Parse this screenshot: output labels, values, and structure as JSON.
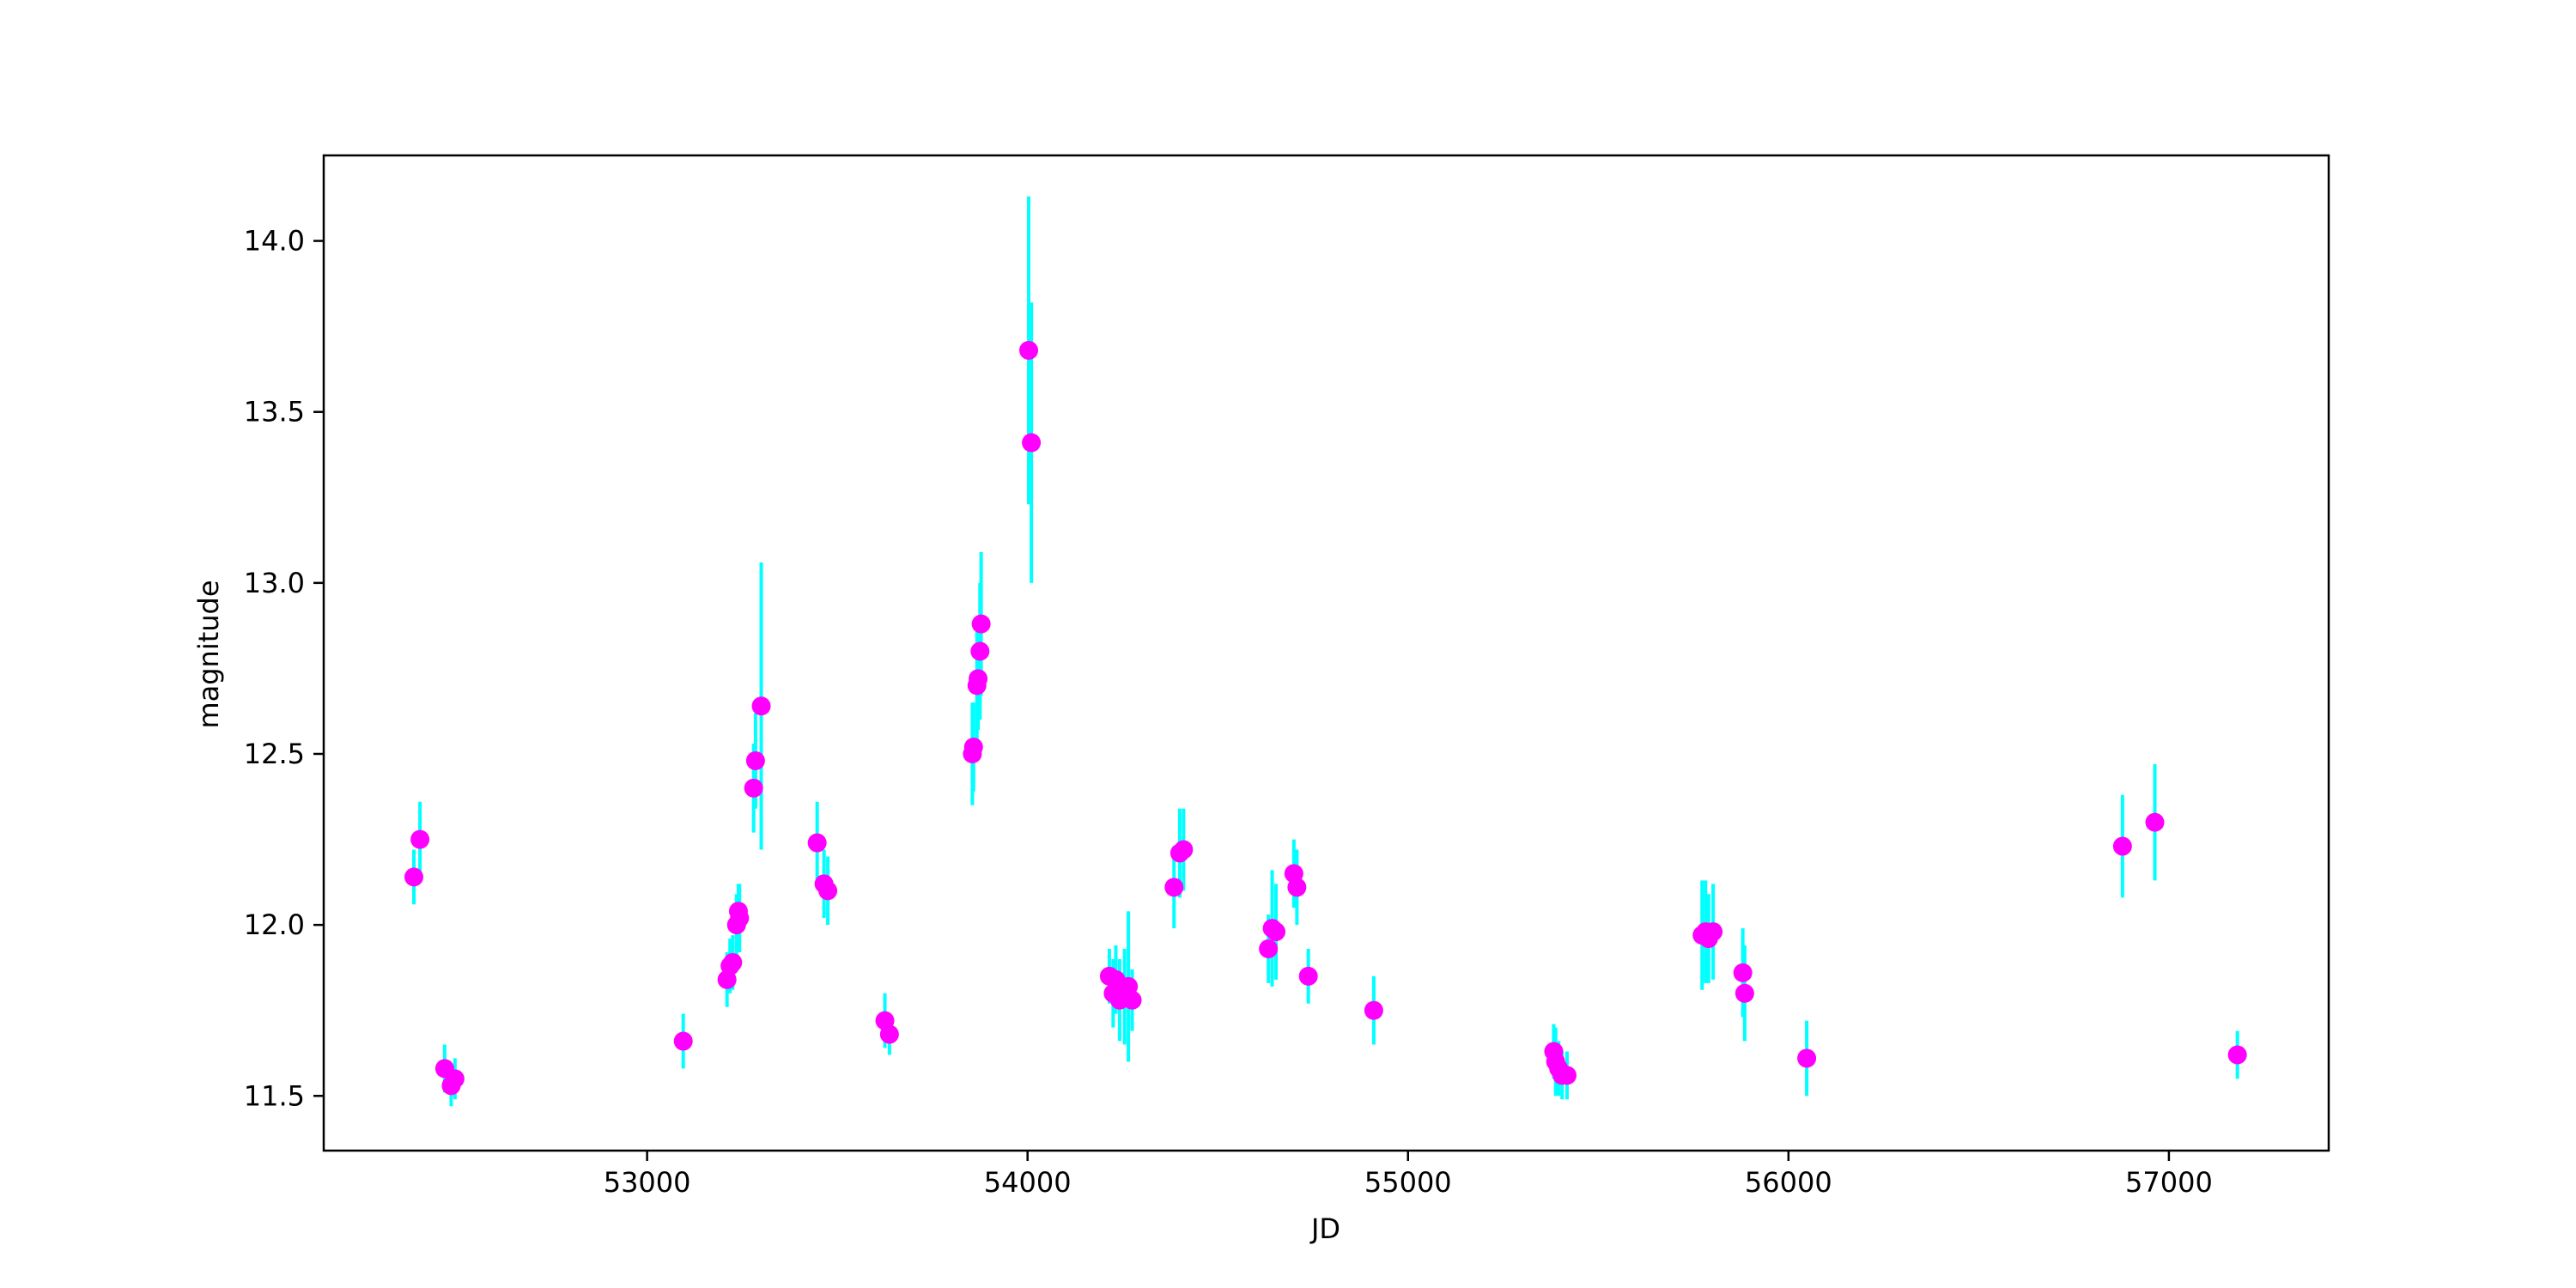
{
  "chart_data": {
    "type": "scatter",
    "title": "",
    "xlabel": "JD",
    "ylabel": "magnitude",
    "xlim": [
      52150,
      57420
    ],
    "ylim": [
      11.34,
      14.25
    ],
    "xticks": [
      53000,
      54000,
      55000,
      56000,
      57000
    ],
    "xtick_labels": [
      "53000",
      "54000",
      "55000",
      "56000",
      "57000"
    ],
    "yticks": [
      11.5,
      12.0,
      12.5,
      13.0,
      13.5,
      14.0
    ],
    "ytick_labels": [
      "11.5",
      "12.0",
      "12.5",
      "13.0",
      "13.5",
      "14.0"
    ],
    "grid": false,
    "marker_color": "#ff00ff",
    "errorbar_color": "#00ffff",
    "series": [
      {
        "x": [
          52387,
          52403,
          52468,
          52485,
          52495,
          53095,
          53210,
          53218,
          53225,
          53235,
          53240,
          53243,
          53280,
          53285,
          53300,
          53447,
          53465,
          53475,
          53625,
          53637,
          53855,
          53858,
          53867,
          53870,
          53875,
          53878,
          54003,
          54010,
          54215,
          54225,
          54232,
          54242,
          54255,
          54265,
          54275,
          54385,
          54400,
          54410,
          54633,
          54643,
          54653,
          54700,
          54708,
          54738,
          54910,
          55383,
          55388,
          55396,
          55405,
          55418,
          55773,
          55782,
          55790,
          55802,
          55880,
          55885,
          56048,
          56878,
          56963,
          57180
        ],
        "y": [
          12.14,
          12.25,
          11.58,
          11.53,
          11.55,
          11.66,
          11.84,
          11.88,
          11.89,
          12.0,
          12.04,
          12.02,
          12.4,
          12.48,
          12.64,
          12.24,
          12.12,
          12.1,
          11.72,
          11.68,
          12.5,
          12.52,
          12.7,
          12.72,
          12.8,
          12.88,
          13.68,
          13.41,
          11.85,
          11.8,
          11.84,
          11.78,
          11.79,
          11.82,
          11.78,
          12.11,
          12.21,
          12.22,
          11.93,
          11.99,
          11.98,
          12.15,
          12.11,
          11.85,
          11.75,
          11.63,
          11.6,
          11.58,
          11.56,
          11.56,
          11.97,
          11.98,
          11.96,
          11.98,
          11.86,
          11.8,
          11.61,
          12.23,
          12.3,
          11.62
        ],
        "yerr": [
          0.08,
          0.11,
          0.07,
          0.06,
          0.06,
          0.08,
          0.08,
          0.08,
          0.08,
          0.09,
          0.08,
          0.1,
          0.13,
          0.14,
          0.42,
          0.12,
          0.1,
          0.1,
          0.08,
          0.06,
          0.15,
          0.13,
          0.16,
          0.15,
          0.2,
          0.21,
          0.45,
          0.41,
          0.08,
          0.1,
          0.1,
          0.12,
          0.14,
          0.22,
          0.09,
          0.12,
          0.13,
          0.12,
          0.1,
          0.17,
          0.14,
          0.1,
          0.11,
          0.08,
          0.1,
          0.08,
          0.1,
          0.08,
          0.07,
          0.07,
          0.16,
          0.15,
          0.13,
          0.14,
          0.13,
          0.14,
          0.11,
          0.15,
          0.17,
          0.07
        ]
      }
    ]
  }
}
